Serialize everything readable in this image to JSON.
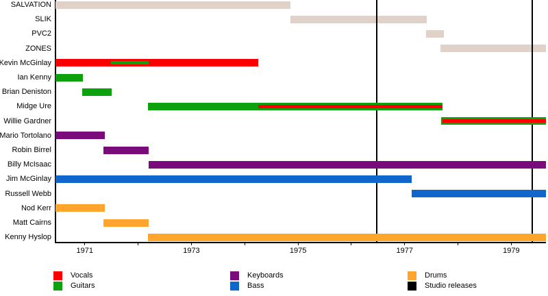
{
  "chart_data": {
    "type": "timeline",
    "description": "Band lineup timeline with membership periods by instrument role",
    "x_axis": {
      "range": [
        1970.45,
        1979.65
      ],
      "tick_years": [
        1971,
        1972,
        1973,
        1974,
        1975,
        1976,
        1977,
        1978,
        1979
      ],
      "labeled_years": [
        "1971",
        "1973",
        "1975",
        "1977",
        "1979"
      ]
    },
    "colors": {
      "vocals": "#fb0000",
      "guitars": "#0da10d",
      "keyboards": "#7a0b7a",
      "bass": "#1166cc",
      "drums": "#ffa42d",
      "band": "#e0d2c8",
      "studio_release": "#000000"
    },
    "release_lines": [
      1976.48,
      1979.39
    ],
    "rows": [
      {
        "label": "SALVATION",
        "bars": [
          {
            "role": "band",
            "start": 1970.45,
            "end": 1974.86
          }
        ]
      },
      {
        "label": "SLIK",
        "bars": [
          {
            "role": "band",
            "start": 1974.86,
            "end": 1977.41
          }
        ]
      },
      {
        "label": "PVC2",
        "bars": [
          {
            "role": "band",
            "start": 1977.4,
            "end": 1977.74
          }
        ]
      },
      {
        "label": "ZONES",
        "bars": [
          {
            "role": "band",
            "start": 1977.67,
            "end": 1979.65
          }
        ]
      },
      {
        "label": "Kevin McGinlay",
        "bars": [
          {
            "role": "vocals",
            "start": 1970.45,
            "end": 1974.25,
            "overlay": {
              "role": "guitars",
              "start": 1971.49,
              "end": 1972.2
            }
          }
        ]
      },
      {
        "label": "Ian Kenny",
        "bars": [
          {
            "role": "guitars",
            "start": 1970.45,
            "end": 1970.97
          }
        ]
      },
      {
        "label": "Brian Deniston",
        "bars": [
          {
            "role": "guitars",
            "start": 1970.95,
            "end": 1971.5
          }
        ]
      },
      {
        "label": "Midge Ure",
        "bars": [
          {
            "role": "guitars",
            "start": 1972.18,
            "end": 1977.71,
            "overlay": {
              "role": "vocals",
              "start": 1974.25,
              "end": 1977.71
            }
          }
        ]
      },
      {
        "label": "Willie Gardner",
        "bars": [
          {
            "role": "guitars",
            "start": 1977.68,
            "end": 1979.65,
            "overlay": {
              "role": "vocals",
              "start": 1977.71,
              "end": 1979.65
            }
          }
        ]
      },
      {
        "label": "Mario Tortolano",
        "bars": [
          {
            "role": "keyboards",
            "start": 1970.45,
            "end": 1971.37
          }
        ]
      },
      {
        "label": "Robin Birrel",
        "bars": [
          {
            "role": "keyboards",
            "start": 1971.35,
            "end": 1972.2
          }
        ]
      },
      {
        "label": "Billy McIsaac",
        "bars": [
          {
            "role": "keyboards",
            "start": 1972.2,
            "end": 1979.65
          }
        ]
      },
      {
        "label": "Jim McGinlay",
        "bars": [
          {
            "role": "bass",
            "start": 1970.45,
            "end": 1977.13
          }
        ]
      },
      {
        "label": "Russell Webb",
        "bars": [
          {
            "role": "bass",
            "start": 1977.13,
            "end": 1979.65
          }
        ]
      },
      {
        "label": "Nod Kerr",
        "bars": [
          {
            "role": "drums",
            "start": 1970.45,
            "end": 1971.37
          }
        ]
      },
      {
        "label": "Matt Cairns",
        "bars": [
          {
            "role": "drums",
            "start": 1971.35,
            "end": 1972.2
          }
        ]
      },
      {
        "label": "Kenny Hyslop",
        "bars": [
          {
            "role": "drums",
            "start": 1972.18,
            "end": 1979.65
          }
        ]
      }
    ],
    "legend": [
      {
        "label": "Vocals",
        "role": "vocals"
      },
      {
        "label": "Guitars",
        "role": "guitars"
      },
      {
        "label": "Keyboards",
        "role": "keyboards"
      },
      {
        "label": "Bass",
        "role": "bass"
      },
      {
        "label": "Drums",
        "role": "drums"
      },
      {
        "label": "Studio releases",
        "role": "studio_release"
      }
    ]
  }
}
